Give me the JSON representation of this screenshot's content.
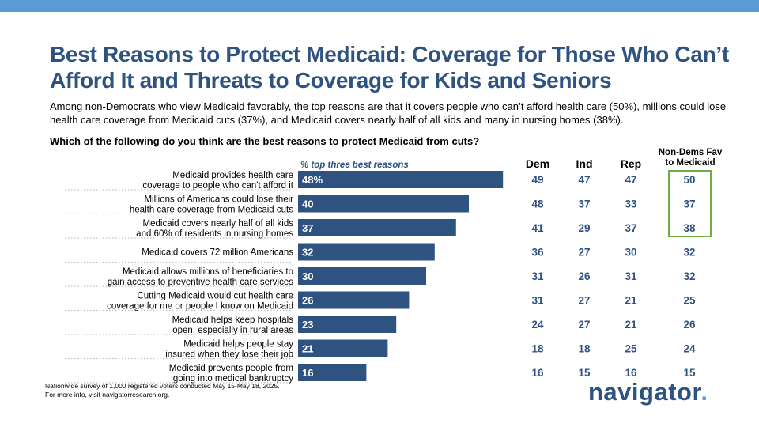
{
  "title": "Best Reasons to Protect Medicaid: Coverage for Those Who Can’t Afford It and Threats to Coverage for Kids and Seniors",
  "subtitle": "Among non-Democrats who view Medicaid favorably, the top reasons are that it covers people who can’t afford health care (50%), millions could lose health care coverage from Medicaid cuts (37%), and Medicaid covers nearly half of all kids and many in nursing homes (38%).",
  "question": "Which of the following do you think are the best reasons to protect Medicaid from cuts?",
  "footnote": {
    "line1": "Nationwide survey of 1,000 registered voters conducted May 15-May 18, 2025.",
    "line2": "For more info, visit navigatorresearch.org."
  },
  "logo": {
    "text": "navigator",
    "dot": "."
  },
  "colors": {
    "bar": "#2f5381",
    "title": "#2f5381",
    "accent_box": "#70ad47",
    "topbar": "#5b9bd5",
    "value": "#2f5381"
  },
  "chart_data": {
    "type": "bar",
    "orientation": "horizontal",
    "bar_header": "% top three best reasons",
    "value_suffix_first": "%",
    "xlim": [
      0,
      50
    ],
    "categories": [
      [
        "Medicaid provides health care",
        "coverage to people who can't afford it"
      ],
      [
        "Millions of Americans could lose their",
        "health care coverage from Medicaid cuts"
      ],
      [
        "Medicaid covers nearly half of all kids",
        "and 60% of residents in nursing homes"
      ],
      [
        "Medicaid covers 72 million Americans"
      ],
      [
        "Medicaid allows millions of beneficiaries to",
        "gain access to preventive health care services"
      ],
      [
        "Cutting Medicaid would cut health care",
        "coverage for me or people I know on Medicaid"
      ],
      [
        "Medicaid helps keep hospitals",
        "open, especially in rural areas"
      ],
      [
        "Medicaid helps people stay",
        "insured when they lose their job"
      ],
      [
        "Medicaid prevents people from",
        "going into medical bankruptcy"
      ]
    ],
    "values": [
      48,
      40,
      37,
      32,
      30,
      26,
      23,
      21,
      16
    ],
    "columns": [
      {
        "name": "Dem",
        "values": [
          49,
          48,
          41,
          36,
          31,
          31,
          24,
          18,
          16
        ]
      },
      {
        "name": "Ind",
        "values": [
          47,
          37,
          29,
          27,
          26,
          27,
          27,
          18,
          15
        ]
      },
      {
        "name": "Rep",
        "values": [
          47,
          33,
          37,
          30,
          31,
          21,
          21,
          25,
          16
        ]
      },
      {
        "name_line1": "Non-Dems Fav",
        "name_line2": "to Medicaid",
        "values": [
          50,
          37,
          38,
          32,
          32,
          25,
          26,
          24,
          15
        ]
      }
    ],
    "highlighted_column": 3,
    "highlighted_rows": [
      0,
      1,
      2
    ]
  }
}
